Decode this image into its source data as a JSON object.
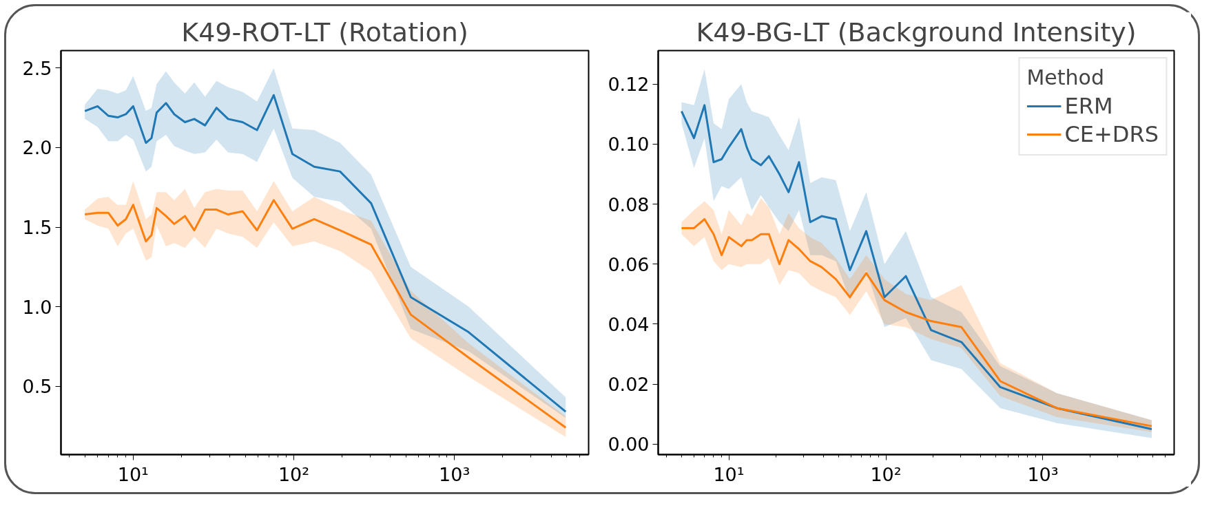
{
  "chart_data": [
    {
      "type": "line",
      "title": "K49-ROT-LT (Rotation)",
      "log": "x",
      "x": [
        5,
        6,
        7,
        8,
        9,
        10,
        12,
        13,
        14,
        16,
        18,
        21,
        24,
        28,
        33,
        39,
        48,
        59,
        75,
        98,
        134,
        194,
        303,
        535,
        1225,
        4930
      ],
      "xlim": [
        3.55,
        6850
      ],
      "xticks": [
        {
          "value": 10,
          "label": "10¹"
        },
        {
          "value": 100,
          "label": "10²"
        },
        {
          "value": 1000,
          "label": "10³"
        }
      ],
      "ylim": [
        0.07,
        2.61
      ],
      "yticks": [
        {
          "value": 0.5,
          "label": "0.5"
        },
        {
          "value": 1.0,
          "label": "1.0"
        },
        {
          "value": 1.5,
          "label": "1.5"
        },
        {
          "value": 2.0,
          "label": "2.0"
        },
        {
          "value": 2.5,
          "label": "2.5"
        }
      ],
      "grid": false,
      "legend": false,
      "series": [
        {
          "color": "#1f77b4",
          "values": [
            2.23,
            2.26,
            2.2,
            2.19,
            2.21,
            2.26,
            2.03,
            2.06,
            2.22,
            2.28,
            2.21,
            2.16,
            2.18,
            2.14,
            2.25,
            2.18,
            2.16,
            2.11,
            2.33,
            1.96,
            1.88,
            1.85,
            1.65,
            1.06,
            0.84,
            0.34
          ],
          "upper": [
            2.27,
            2.37,
            2.36,
            2.34,
            2.36,
            2.45,
            2.23,
            2.25,
            2.4,
            2.48,
            2.41,
            2.34,
            2.41,
            2.32,
            2.42,
            2.38,
            2.35,
            2.29,
            2.5,
            2.12,
            2.11,
            2.03,
            1.83,
            1.25,
            1.0,
            0.43
          ],
          "lower": [
            2.18,
            2.13,
            2.04,
            2.04,
            2.08,
            2.05,
            1.85,
            1.88,
            2.04,
            2.08,
            2.01,
            1.98,
            1.96,
            1.97,
            2.05,
            1.97,
            1.96,
            1.91,
            2.12,
            1.81,
            1.69,
            1.66,
            1.49,
            0.86,
            0.72,
            0.3
          ]
        },
        {
          "color": "#ff7f0e",
          "values": [
            1.58,
            1.59,
            1.59,
            1.51,
            1.55,
            1.64,
            1.41,
            1.45,
            1.62,
            1.57,
            1.52,
            1.57,
            1.48,
            1.61,
            1.61,
            1.58,
            1.6,
            1.48,
            1.67,
            1.49,
            1.55,
            1.48,
            1.39,
            0.95,
            0.68,
            0.24
          ],
          "upper": [
            1.61,
            1.68,
            1.69,
            1.64,
            1.64,
            1.79,
            1.55,
            1.58,
            1.72,
            1.72,
            1.67,
            1.74,
            1.62,
            1.72,
            1.74,
            1.73,
            1.73,
            1.6,
            1.79,
            1.6,
            1.69,
            1.61,
            1.54,
            1.1,
            0.77,
            0.31
          ],
          "lower": [
            1.55,
            1.51,
            1.49,
            1.38,
            1.46,
            1.49,
            1.29,
            1.31,
            1.51,
            1.38,
            1.4,
            1.37,
            1.44,
            1.37,
            1.49,
            1.46,
            1.44,
            1.37,
            1.53,
            1.38,
            1.41,
            1.35,
            1.22,
            0.8,
            0.56,
            0.18
          ]
        }
      ]
    },
    {
      "type": "line",
      "title": "K49-BG-LT (Background Intensity)",
      "log": "x",
      "legend": "top right",
      "legend_title": "Method",
      "x": [
        5,
        6,
        7,
        8,
        9,
        10,
        12,
        13,
        14,
        16,
        18,
        21,
        24,
        28,
        33,
        39,
        48,
        59,
        75,
        98,
        134,
        194,
        303,
        535,
        1225,
        4930
      ],
      "xlim": [
        3.55,
        6850
      ],
      "xticks": [
        {
          "value": 10,
          "label": "10¹"
        },
        {
          "value": 100,
          "label": "10²"
        },
        {
          "value": 1000,
          "label": "10³"
        }
      ],
      "ylim": [
        -0.0035,
        0.1312
      ],
      "yticks": [
        {
          "value": 0,
          "label": "0.00"
        },
        {
          "value": 0.02,
          "label": "0.02"
        },
        {
          "value": 0.04,
          "label": "0.04"
        },
        {
          "value": 0.06,
          "label": "0.06"
        },
        {
          "value": 0.08,
          "label": "0.08"
        },
        {
          "value": 0.1,
          "label": "0.10"
        },
        {
          "value": 0.12,
          "label": "0.12"
        }
      ],
      "grid": false,
      "series": [
        {
          "name": "ERM",
          "color": "#1f77b4",
          "values": [
            0.111,
            0.102,
            0.113,
            0.094,
            0.095,
            0.099,
            0.105,
            0.099,
            0.095,
            0.093,
            0.096,
            0.09,
            0.084,
            0.094,
            0.074,
            0.076,
            0.075,
            0.058,
            0.071,
            0.049,
            0.056,
            0.038,
            0.034,
            0.019,
            0.012,
            0.005
          ],
          "upper": [
            0.114,
            0.113,
            0.125,
            0.107,
            0.105,
            0.115,
            0.12,
            0.114,
            0.111,
            0.11,
            0.109,
            0.103,
            0.098,
            0.109,
            0.087,
            0.089,
            0.088,
            0.071,
            0.084,
            0.06,
            0.071,
            0.049,
            0.044,
            0.026,
            0.017,
            0.008
          ],
          "lower": [
            0.107,
            0.092,
            0.102,
            0.081,
            0.086,
            0.085,
            0.089,
            0.083,
            0.078,
            0.083,
            0.079,
            0.074,
            0.071,
            0.078,
            0.063,
            0.063,
            0.061,
            0.048,
            0.058,
            0.039,
            0.042,
            0.028,
            0.025,
            0.012,
            0.007,
            0.002
          ]
        },
        {
          "name": "CE+DRS",
          "color": "#ff7f0e",
          "values": [
            0.072,
            0.072,
            0.075,
            0.07,
            0.063,
            0.069,
            0.066,
            0.068,
            0.068,
            0.07,
            0.07,
            0.06,
            0.068,
            0.065,
            0.061,
            0.059,
            0.055,
            0.049,
            0.057,
            0.048,
            0.044,
            0.041,
            0.039,
            0.021,
            0.012,
            0.006
          ],
          "upper": [
            0.074,
            0.078,
            0.081,
            0.078,
            0.07,
            0.078,
            0.073,
            0.077,
            0.076,
            0.082,
            0.079,
            0.07,
            0.077,
            0.072,
            0.069,
            0.067,
            0.062,
            0.055,
            0.063,
            0.055,
            0.05,
            0.048,
            0.053,
            0.027,
            0.017,
            0.008
          ],
          "lower": [
            0.07,
            0.066,
            0.069,
            0.061,
            0.058,
            0.06,
            0.059,
            0.06,
            0.06,
            0.06,
            0.062,
            0.053,
            0.058,
            0.057,
            0.053,
            0.051,
            0.049,
            0.043,
            0.051,
            0.04,
            0.039,
            0.035,
            0.032,
            0.016,
            0.009,
            0.004
          ]
        }
      ]
    }
  ]
}
